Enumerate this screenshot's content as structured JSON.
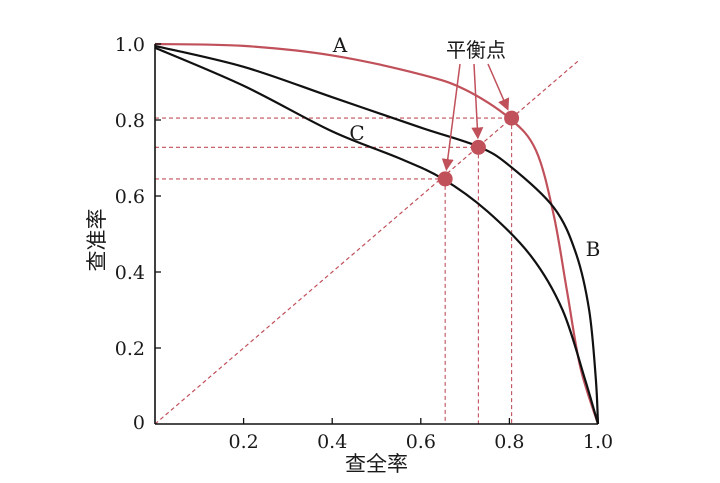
{
  "chart_data": {
    "type": "line",
    "title": "",
    "xlabel": "查全率",
    "ylabel": "查准率",
    "xlim": [
      0,
      1
    ],
    "ylim": [
      0,
      1
    ],
    "grid": false,
    "x_ticks": [
      "0.2",
      "0.4",
      "0.6",
      "0.8",
      "1.0"
    ],
    "y_ticks": [
      "0",
      "0.2",
      "0.4",
      "0.6",
      "0.8",
      "1.0"
    ],
    "series": [
      {
        "name": "A",
        "color": "#c0505a",
        "points": [
          [
            0,
            1.0
          ],
          [
            0.2,
            0.995
          ],
          [
            0.4,
            0.97
          ],
          [
            0.6,
            0.92
          ],
          [
            0.7,
            0.88
          ],
          [
            0.8,
            0.805
          ],
          [
            0.86,
            0.72
          ],
          [
            0.9,
            0.55
          ],
          [
            0.93,
            0.35
          ],
          [
            0.96,
            0.15
          ],
          [
            1.0,
            0
          ]
        ]
      },
      {
        "name": "B",
        "color": "#111111",
        "points": [
          [
            0,
            0.995
          ],
          [
            0.2,
            0.94
          ],
          [
            0.4,
            0.86
          ],
          [
            0.6,
            0.78
          ],
          [
            0.73,
            0.73
          ],
          [
            0.8,
            0.68
          ],
          [
            0.9,
            0.57
          ],
          [
            0.95,
            0.45
          ],
          [
            0.98,
            0.3
          ],
          [
            0.995,
            0.12
          ],
          [
            1.0,
            0
          ]
        ]
      },
      {
        "name": "C",
        "color": "#111111",
        "points": [
          [
            0,
            0.99
          ],
          [
            0.2,
            0.89
          ],
          [
            0.4,
            0.77
          ],
          [
            0.55,
            0.7
          ],
          [
            0.65,
            0.645
          ],
          [
            0.75,
            0.56
          ],
          [
            0.85,
            0.44
          ],
          [
            0.92,
            0.3
          ],
          [
            0.97,
            0.12
          ],
          [
            1.0,
            0
          ]
        ]
      }
    ],
    "reference_line": {
      "type": "diagonal",
      "from": [
        0,
        0
      ],
      "to": [
        1,
        1
      ],
      "style": "dashed",
      "color": "#c0505a"
    },
    "break_even_points": [
      {
        "x": 0.655,
        "y": 0.645
      },
      {
        "x": 0.73,
        "y": 0.728
      },
      {
        "x": 0.805,
        "y": 0.805
      }
    ],
    "annotation": "平衡点",
    "marker_color": "#c0505a",
    "guide_color": "#c0505a"
  }
}
